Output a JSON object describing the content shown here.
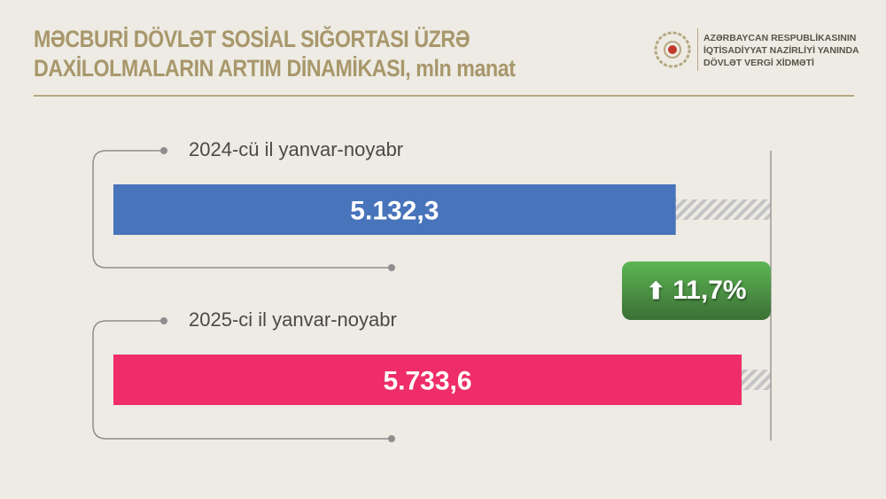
{
  "header": {
    "title_line1": "MƏCBURİ DÖVLƏT SOSİAL SIĞORTASI ÜZRƏ",
    "title_line2": "DAXİLOLMALARIN ARTIM DİNAMİKASI, mln manat",
    "org_line1": "AZƏRBAYCAN RESPUBLİKASININ",
    "org_line2": "İQTİSADİYYAT NAZİRLİYİ YANINDA",
    "org_line3": "DÖVLƏT VERGİ XİDMƏTİ"
  },
  "chart_data": {
    "type": "bar",
    "orientation": "horizontal",
    "categories": [
      "2024-cü il yanvar-noyabr",
      "2025-ci il yanvar-noyabr"
    ],
    "values": [
      5132.3,
      5733.6
    ],
    "value_labels": [
      "5.132,3",
      "5.733,6"
    ],
    "colors": [
      "#4874bb",
      "#ee2d6a"
    ],
    "xlim": [
      0,
      6000
    ],
    "annotation": {
      "text": "11,7%",
      "icon": "arrow-up-icon",
      "color": "#4a8f42"
    }
  }
}
